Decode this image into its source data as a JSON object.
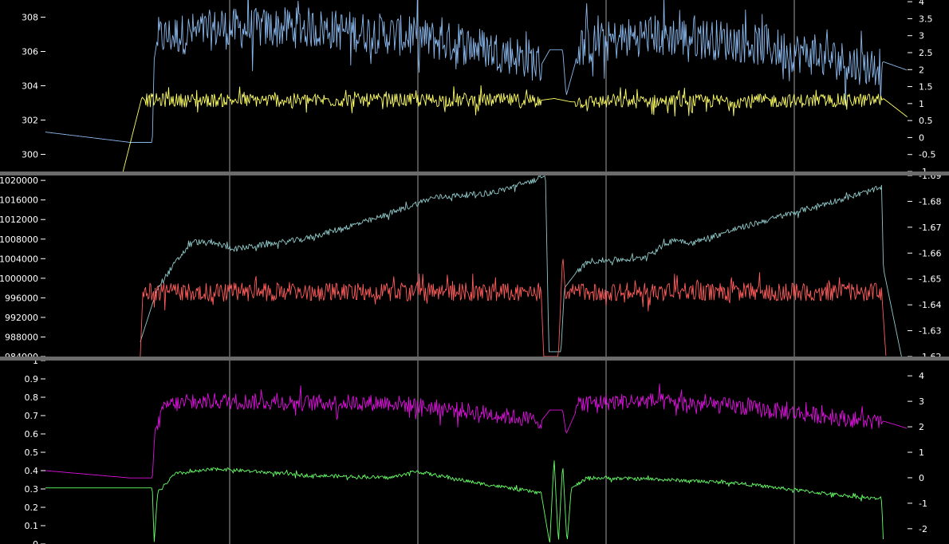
{
  "chart_data": [
    {
      "type": "line",
      "panel": "top",
      "y_left": {
        "ylim": [
          299,
          309
        ],
        "ticks": [
          300,
          302,
          304,
          306,
          308
        ]
      },
      "y_right": {
        "ylim": [
          -1,
          4.05
        ],
        "ticks": [
          -1,
          -0.5,
          0,
          0.5,
          1,
          1.5,
          2,
          2.5,
          3,
          3.5,
          4
        ]
      },
      "grid": "vertical",
      "series": [
        {
          "axis": "left",
          "color": "#8ab8ec",
          "noise": 1.2,
          "points": [
            [
              0,
              301.3
            ],
            [
              0.098,
              300.7
            ],
            [
              0.124,
              300.7
            ],
            [
              0.126,
              305.5
            ],
            [
              0.13,
              306.8
            ],
            [
              0.2,
              307.3
            ],
            [
              0.3,
              307.4
            ],
            [
              0.4,
              307.0
            ],
            [
              0.5,
              306.3
            ],
            [
              0.56,
              305.6
            ],
            [
              0.575,
              305.2
            ],
            [
              0.585,
              306.1
            ],
            [
              0.6,
              306.1
            ],
            [
              0.604,
              303.4
            ],
            [
              0.62,
              306.3
            ],
            [
              0.7,
              307.0
            ],
            [
              0.8,
              306.6
            ],
            [
              0.9,
              305.7
            ],
            [
              0.96,
              305.1
            ],
            [
              0.97,
              305.3
            ],
            [
              0.972,
              305.4
            ],
            [
              1.0,
              304.9
            ]
          ],
          "noisy_ranges": [
            [
              0.13,
              0.575
            ],
            [
              0.615,
              0.97
            ]
          ]
        },
        {
          "axis": "right",
          "color": "#ffff66",
          "noise": 0.2,
          "points": [
            [
              0.09,
              -1.0
            ],
            [
              0.112,
              1.2
            ],
            [
              0.115,
              1.1
            ],
            [
              0.575,
              1.1
            ],
            [
              0.59,
              1.15
            ],
            [
              0.61,
              1.05
            ],
            [
              0.97,
              1.1
            ],
            [
              0.972,
              1.15
            ],
            [
              1.0,
              0.6
            ]
          ],
          "noisy_ranges": [
            [
              0.116,
              0.575
            ],
            [
              0.615,
              0.97
            ]
          ]
        }
      ]
    },
    {
      "type": "line",
      "panel": "middle",
      "y_left": {
        "ylim": [
          984000,
          1021000
        ],
        "ticks": [
          984000,
          988000,
          992000,
          996000,
          1000000,
          1004000,
          1008000,
          1012000,
          1016000,
          1020000
        ]
      },
      "y_right": {
        "ylim": [
          -1.62,
          -1.69
        ],
        "ticks": [
          -1.62,
          -1.63,
          -1.64,
          -1.65,
          -1.66,
          -1.67,
          -1.68,
          -1.69
        ]
      },
      "grid": "vertical",
      "series": [
        {
          "axis": "left",
          "color": "#8fc8c8",
          "noise": 600,
          "points": [
            [
              0.11,
              987000
            ],
            [
              0.13,
              998000
            ],
            [
              0.15,
              1003000
            ],
            [
              0.17,
              1007500
            ],
            [
              0.2,
              1007000
            ],
            [
              0.22,
              1006000
            ],
            [
              0.3,
              1008000
            ],
            [
              0.38,
              1012000
            ],
            [
              0.45,
              1016500
            ],
            [
              0.52,
              1017500
            ],
            [
              0.575,
              1020500
            ],
            [
              0.58,
              1021000
            ],
            [
              0.584,
              985000
            ],
            [
              0.598,
              985000
            ],
            [
              0.602,
              998000
            ],
            [
              0.615,
              1001000
            ],
            [
              0.63,
              1003500
            ],
            [
              0.69,
              1004000
            ],
            [
              0.73,
              1008000
            ],
            [
              0.75,
              1007200
            ],
            [
              0.8,
              1010000
            ],
            [
              0.86,
              1013000
            ],
            [
              0.92,
              1016000
            ],
            [
              0.97,
              1018500
            ],
            [
              0.972,
              1002000
            ],
            [
              1.0,
              978000
            ]
          ],
          "noisy_ranges": [
            [
              0.13,
              0.575
            ],
            [
              0.615,
              0.97
            ]
          ]
        },
        {
          "axis": "right",
          "color": "#ff5c5c",
          "noise": 0.0035,
          "points": [
            [
              0.11,
              -1.62
            ],
            [
              0.113,
              -1.645
            ],
            [
              0.575,
              -1.645
            ],
            [
              0.578,
              -1.62
            ],
            [
              0.595,
              -1.62
            ],
            [
              0.6,
              -1.66
            ],
            [
              0.604,
              -1.64
            ],
            [
              0.605,
              -1.645
            ],
            [
              0.97,
              -1.645
            ],
            [
              0.975,
              -1.62
            ]
          ],
          "noisy_ranges": [
            [
              0.114,
              0.575
            ],
            [
              0.605,
              0.97
            ]
          ]
        }
      ]
    },
    {
      "type": "line",
      "panel": "bottom",
      "y_left": {
        "ylim": [
          0,
          1.0
        ],
        "ticks": [
          0,
          0.1,
          0.2,
          0.3,
          0.4,
          0.5,
          0.6,
          0.7,
          0.8,
          0.9,
          1
        ]
      },
      "y_right": {
        "ylim": [
          -2.6,
          4.6
        ],
        "ticks": [
          -2,
          -1,
          0,
          1,
          2,
          3,
          4
        ]
      },
      "grid": "vertical",
      "series": [
        {
          "axis": "left",
          "color": "#dd11dd",
          "noise": 0.045,
          "points": [
            [
              0,
              0.4
            ],
            [
              0.098,
              0.36
            ],
            [
              0.124,
              0.36
            ],
            [
              0.127,
              0.62
            ],
            [
              0.14,
              0.76
            ],
            [
              0.2,
              0.78
            ],
            [
              0.3,
              0.77
            ],
            [
              0.4,
              0.77
            ],
            [
              0.5,
              0.72
            ],
            [
              0.575,
              0.67
            ],
            [
              0.585,
              0.73
            ],
            [
              0.6,
              0.73
            ],
            [
              0.604,
              0.6
            ],
            [
              0.62,
              0.77
            ],
            [
              0.7,
              0.78
            ],
            [
              0.8,
              0.75
            ],
            [
              0.9,
              0.7
            ],
            [
              0.97,
              0.66
            ],
            [
              0.972,
              0.67
            ],
            [
              1.0,
              0.63
            ]
          ],
          "noisy_ranges": [
            [
              0.13,
              0.575
            ],
            [
              0.615,
              0.97
            ]
          ]
        },
        {
          "axis": "right",
          "color": "#66ff66",
          "noise": 0.07,
          "points": [
            [
              0,
              -0.4
            ],
            [
              0.124,
              -0.4
            ],
            [
              0.126,
              -2.6
            ],
            [
              0.13,
              -0.6
            ],
            [
              0.15,
              0.15
            ],
            [
              0.2,
              0.35
            ],
            [
              0.3,
              0.1
            ],
            [
              0.4,
              0.0
            ],
            [
              0.43,
              0.25
            ],
            [
              0.5,
              -0.2
            ],
            [
              0.575,
              -0.6
            ],
            [
              0.585,
              -2.6
            ],
            [
              0.59,
              0.8
            ],
            [
              0.595,
              -2.6
            ],
            [
              0.6,
              0.6
            ],
            [
              0.605,
              -2.6
            ],
            [
              0.61,
              -0.4
            ],
            [
              0.63,
              0.0
            ],
            [
              0.7,
              -0.05
            ],
            [
              0.8,
              -0.2
            ],
            [
              0.9,
              -0.6
            ],
            [
              0.97,
              -0.85
            ],
            [
              0.972,
              -2.6
            ]
          ],
          "noisy_ranges": [
            [
              0.13,
              0.575
            ],
            [
              0.615,
              0.97
            ]
          ]
        }
      ]
    }
  ]
}
